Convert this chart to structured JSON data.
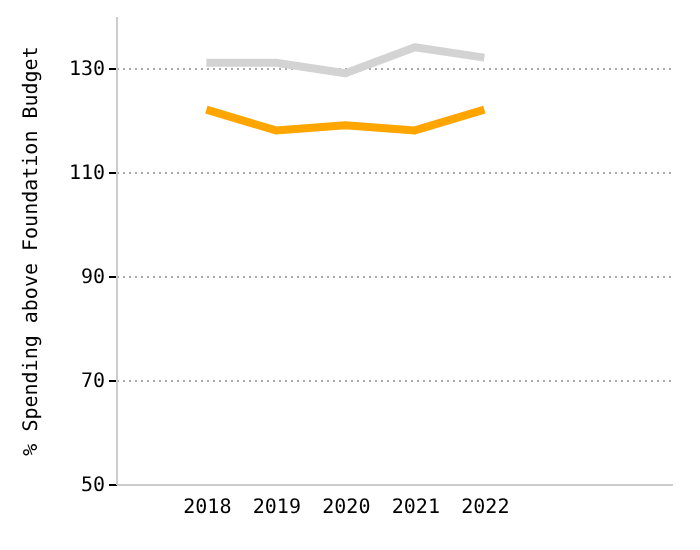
{
  "chart_data": {
    "type": "line",
    "ylabel": "% Spending above Foundation Budget",
    "x": [
      2018,
      2019,
      2020,
      2021,
      2022
    ],
    "series": [
      {
        "color": "#d3d3d3",
        "values": [
          131,
          131,
          129,
          134,
          132
        ]
      },
      {
        "color": "#ffa500",
        "values": [
          122,
          118,
          119,
          118,
          122
        ]
      }
    ],
    "xlim": [
      2016.7,
      2024.7
    ],
    "xticks": [
      2018,
      2019,
      2020,
      2021,
      2022
    ],
    "ylim": [
      50,
      140
    ],
    "yticks": [
      50,
      70,
      90,
      110,
      130
    ],
    "grid": "y",
    "marker": "none",
    "line_style": "solid"
  }
}
